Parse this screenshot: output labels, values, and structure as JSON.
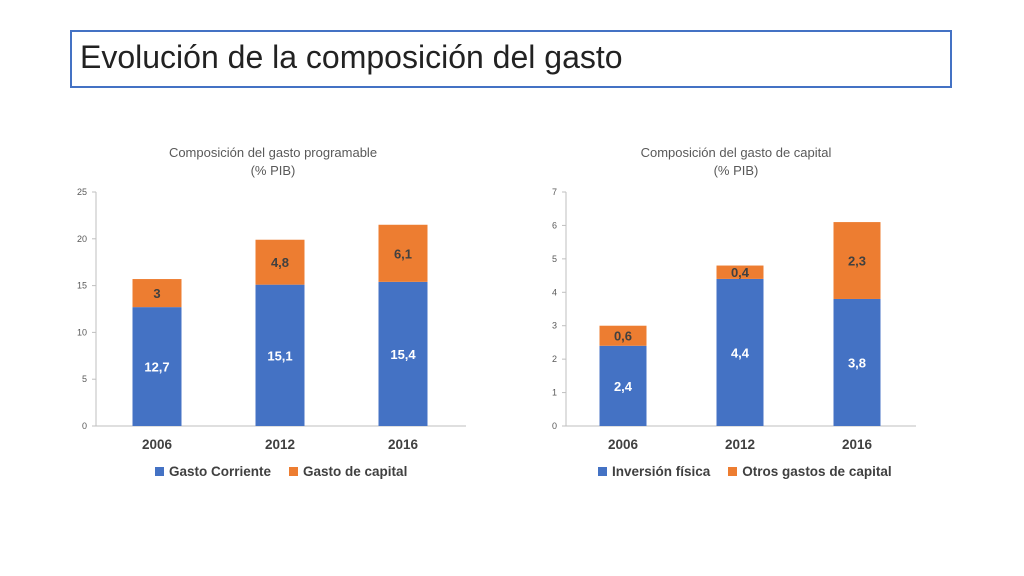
{
  "page": {
    "title": "Evolución de la composición del gasto"
  },
  "colors": {
    "series1": "#4472c4",
    "series2": "#ed7d31",
    "axis": "#bfbfbf",
    "tick_text": "#595959",
    "title_text": "#595959"
  },
  "chart_data": [
    {
      "type": "bar",
      "stacked": true,
      "title": "Composición del gasto programable",
      "subtitle": "(% PIB)",
      "categories": [
        "2006",
        "2012",
        "2016"
      ],
      "series": [
        {
          "name": "Gasto Corriente",
          "values": [
            12.7,
            15.1,
            15.4
          ],
          "labels": [
            "12,7",
            "15,1",
            "15,4"
          ]
        },
        {
          "name": "Gasto de capital",
          "values": [
            3,
            4.8,
            6.1
          ],
          "labels": [
            "3",
            "4,8",
            "6,1"
          ]
        }
      ],
      "ylim": [
        0,
        25
      ],
      "yticks": [
        0,
        5,
        10,
        15,
        20,
        25
      ],
      "grid": false,
      "legend_position": "bottom"
    },
    {
      "type": "bar",
      "stacked": true,
      "title": "Composición del gasto de capital",
      "subtitle": "(% PIB)",
      "categories": [
        "2006",
        "2012",
        "2016"
      ],
      "series": [
        {
          "name": "Inversión física",
          "values": [
            2.4,
            4.4,
            3.8
          ],
          "labels": [
            "2,4",
            "4,4",
            "3,8"
          ]
        },
        {
          "name": "Otros gastos de capital",
          "values": [
            0.6,
            0.4,
            2.3
          ],
          "labels": [
            "0,6",
            "0,4",
            "2,3"
          ]
        }
      ],
      "ylim": [
        0,
        7
      ],
      "yticks": [
        0,
        1,
        2,
        3,
        4,
        5,
        6,
        7
      ],
      "grid": false,
      "legend_position": "bottom"
    }
  ]
}
